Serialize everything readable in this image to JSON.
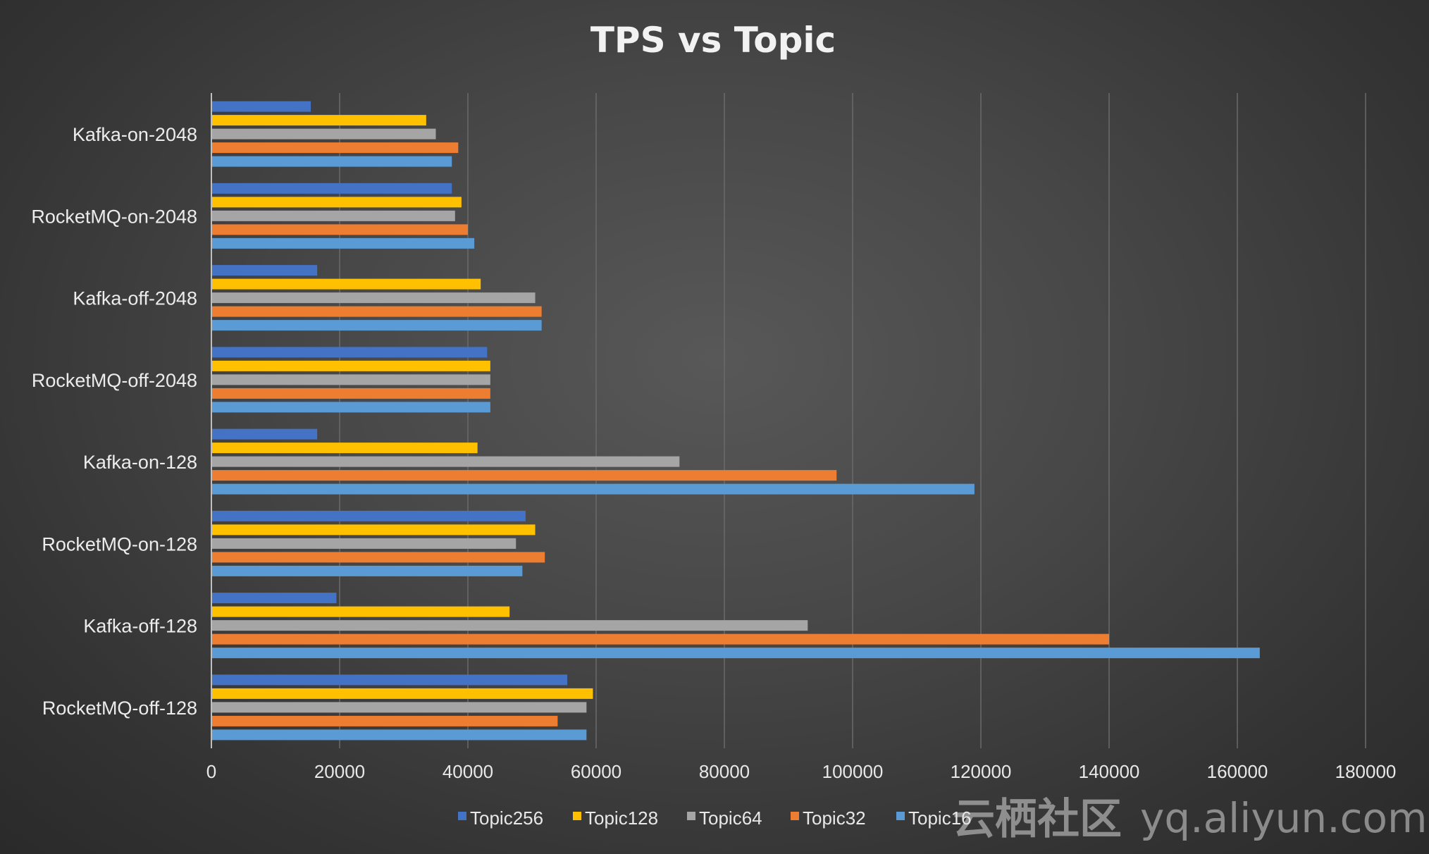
{
  "chart_data": {
    "type": "bar",
    "orientation": "horizontal",
    "title": "TPS vs Topic",
    "xlabel": "",
    "ylabel": "",
    "xlim": [
      0,
      180000
    ],
    "x_ticks": [
      "0",
      "20000",
      "40000",
      "60000",
      "80000",
      "100000",
      "120000",
      "140000",
      "160000",
      "180000"
    ],
    "grid": "vertical",
    "legend_position": "bottom",
    "categories": [
      "Kafka-on-2048",
      "RocketMQ-on-2048",
      "Kafka-off-2048",
      "RocketMQ-off-2048",
      "Kafka-on-128",
      "RocketMQ-on-128",
      "Kafka-off-128",
      "RocketMQ-off-128"
    ],
    "series": [
      {
        "name": "Topic256",
        "color": "#4472c4",
        "values": [
          15500,
          37500,
          16500,
          43000,
          16500,
          49000,
          19500,
          55500
        ]
      },
      {
        "name": "Topic128",
        "color": "#ffc000",
        "values": [
          33500,
          39000,
          42000,
          43500,
          41500,
          50500,
          46500,
          59500
        ]
      },
      {
        "name": "Topic64",
        "color": "#a5a5a5",
        "values": [
          35000,
          38000,
          50500,
          43500,
          73000,
          47500,
          93000,
          58500
        ]
      },
      {
        "name": "Topic32",
        "color": "#ed7d31",
        "values": [
          38500,
          40000,
          51500,
          43500,
          97500,
          52000,
          140000,
          54000
        ]
      },
      {
        "name": "Topic16",
        "color": "#5b9bd5",
        "values": [
          37500,
          41000,
          51500,
          43500,
          119000,
          48500,
          163500,
          58500
        ]
      }
    ]
  },
  "watermark": {
    "cjk": "云栖社区",
    "site": "yq.aliyun.com"
  }
}
